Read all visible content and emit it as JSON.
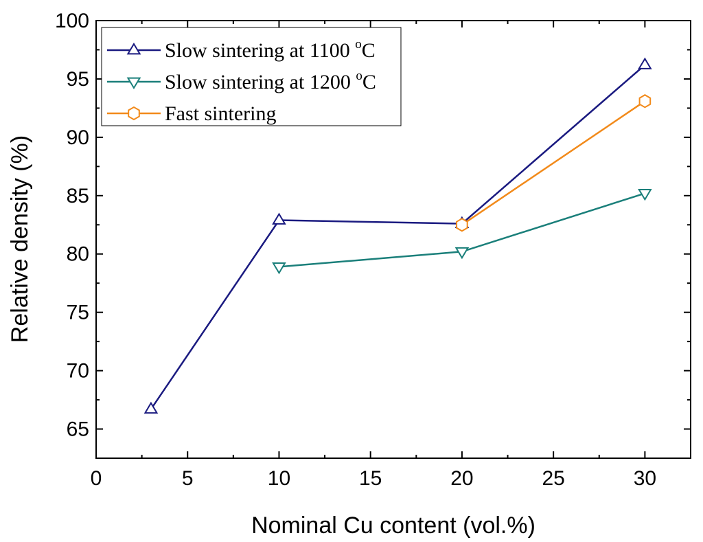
{
  "chart_data": {
    "type": "line",
    "title": "",
    "xlabel": "Nominal Cu content (vol.%)",
    "ylabel": "Relative density (%)",
    "xlim": [
      0,
      32.5
    ],
    "ylim": [
      62.5,
      100
    ],
    "x_ticks": [
      0,
      5,
      10,
      15,
      20,
      25,
      30
    ],
    "y_ticks": [
      65,
      70,
      75,
      80,
      85,
      90,
      95,
      100
    ],
    "legend_position": "top-left",
    "series": [
      {
        "name": "Slow sintering at 1100 °C",
        "legend_main": "Slow sintering at 1100 ",
        "legend_sup": "o",
        "legend_tail": "C",
        "color": "#1a1a80",
        "marker": "triangle-up",
        "x": [
          3,
          10,
          20,
          30
        ],
        "y": [
          66.7,
          82.9,
          82.6,
          96.2
        ]
      },
      {
        "name": "Slow sintering at 1200 °C",
        "legend_main": "Slow sintering at 1200 ",
        "legend_sup": "o",
        "legend_tail": "C",
        "color": "#1a7f7a",
        "marker": "triangle-down",
        "x": [
          10,
          20,
          30
        ],
        "y": [
          78.9,
          80.2,
          85.2
        ]
      },
      {
        "name": "Fast sintering",
        "legend_main": "Fast sintering",
        "legend_sup": "",
        "legend_tail": "",
        "color": "#f28a1a",
        "marker": "hexagon",
        "x": [
          20,
          30
        ],
        "y": [
          82.5,
          93.1
        ]
      }
    ]
  }
}
